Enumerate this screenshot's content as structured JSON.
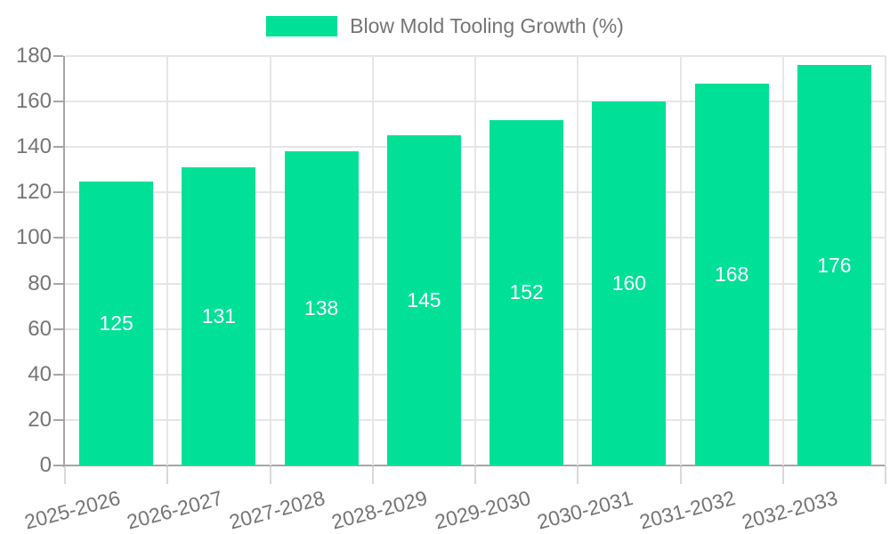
{
  "chart_data": {
    "type": "bar",
    "title": "",
    "legend": {
      "label": "Blow Mold Tooling Growth (%)",
      "position": "top-center"
    },
    "categories": [
      "2025-2026",
      "2026-2027",
      "2027-2028",
      "2028-2029",
      "2029-2030",
      "2030-2031",
      "2031-2032",
      "2032-2033"
    ],
    "values": [
      125,
      131,
      138,
      145,
      152,
      160,
      168,
      176
    ],
    "xlabel": "",
    "ylabel": "",
    "ylim": [
      0,
      180
    ],
    "ytick_step": 20,
    "y_tick_labels": [
      "0",
      "20",
      "40",
      "60",
      "80",
      "100",
      "120",
      "140",
      "160",
      "180"
    ],
    "grid": "both",
    "x_label_rotation_deg": -15,
    "colors": {
      "bar": "#00E096",
      "bar_value_label": "#ffffff",
      "axis_line": "#a6a6a6",
      "gridline": "#e6e6e6",
      "axis_text": "#757575"
    }
  }
}
